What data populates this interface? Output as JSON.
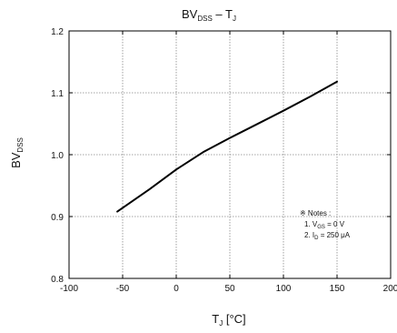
{
  "chart_data": {
    "type": "line",
    "title_main": "BV",
    "title_main_sub": "DSS",
    "title_sep": " – ",
    "title_right": "T",
    "title_right_sub": "J",
    "ylabel_main": "BV",
    "ylabel_sub": "DSS",
    "xlabel_main": "T",
    "xlabel_sub": "J",
    "xlabel_unit": " [°C]",
    "xlim": [
      -100,
      200
    ],
    "ylim": [
      0.8,
      1.2
    ],
    "xticks": [
      -100,
      -50,
      0,
      50,
      100,
      150,
      200
    ],
    "xtick_labels": [
      "-100",
      "-50",
      "0",
      "50",
      "100",
      "150",
      "200"
    ],
    "yticks": [
      0.8,
      0.9,
      1.0,
      1.1,
      1.2
    ],
    "ytick_labels": [
      "0.8",
      "0.9",
      "1.0",
      "1.1",
      "1.2"
    ],
    "grid": true,
    "series": [
      {
        "x": [
          -55,
          -25,
          0,
          25,
          50,
          75,
          100,
          125,
          150
        ],
        "y": [
          0.908,
          0.944,
          0.976,
          1.004,
          1.027,
          1.049,
          1.071,
          1.094,
          1.118
        ],
        "color": "#000000"
      }
    ],
    "note": {
      "title": "※ Notes :",
      "line1_prefix": "1. V",
      "line1_sub": "GS",
      "line1_suffix": " = 0 V",
      "line2_prefix": "2. I",
      "line2_sub": "D",
      "line2_suffix": " = 250 μA"
    }
  }
}
